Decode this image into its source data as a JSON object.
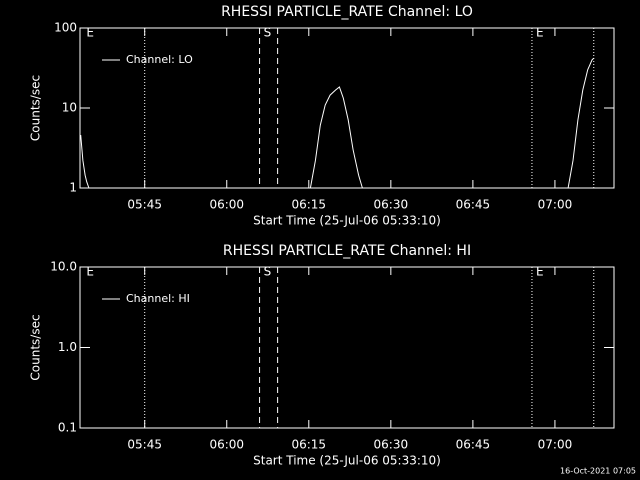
{
  "chart_data": [
    {
      "type": "line",
      "title": "RHESSI PARTICLE_RATE Channel: LO",
      "xlabel": "Start Time (25-Jul-06 05:33:10)",
      "ylabel": "Counts/sec",
      "log_y": true,
      "legend": "top-left",
      "xlim": [
        333.17,
        430.8
      ],
      "xticks": [
        {
          "value": 345,
          "label": "05:45"
        },
        {
          "value": 360,
          "label": "06:00"
        },
        {
          "value": 375,
          "label": "06:15"
        },
        {
          "value": 390,
          "label": "06:30"
        },
        {
          "value": 405,
          "label": "06:45"
        },
        {
          "value": 420,
          "label": "07:00"
        }
      ],
      "ylim": [
        1,
        100
      ],
      "yticks": [
        1,
        10,
        100
      ],
      "markers": [
        {
          "x": 333.6,
          "label": "E",
          "style": "none"
        },
        {
          "x": 345,
          "style": "dotted"
        },
        {
          "x": 366,
          "label": "S",
          "style": "dashed"
        },
        {
          "x": 369.3,
          "style": "dashed"
        },
        {
          "x": 415.8,
          "label": "E",
          "style": "dotted"
        },
        {
          "x": 427.1,
          "style": "dotted"
        }
      ],
      "series": [
        {
          "name": "Channel: LO",
          "color": "#ffffff",
          "x": [
            333.3,
            333.7,
            334.1,
            334.4,
            334.8,
            355,
            375.3,
            376.2,
            377.1,
            378.0,
            378.9,
            379.9,
            380.6,
            381.3,
            382.2,
            383.1,
            384.1,
            384.8,
            400,
            422.4,
            423.3,
            424.2,
            425.1,
            426.0,
            426.8,
            427.1
          ],
          "values": [
            4.6,
            2.2,
            1.45,
            1.2,
            1,
            null,
            1,
            2.2,
            6.1,
            10.9,
            14.5,
            16.8,
            18.3,
            13.3,
            7.1,
            3.0,
            1.45,
            1,
            null,
            1,
            2.2,
            7.1,
            16.8,
            30,
            40,
            42
          ]
        }
      ]
    },
    {
      "type": "line",
      "title": "RHESSI PARTICLE_RATE Channel: HI",
      "xlabel": "Start Time (25-Jul-06 05:33:10)",
      "ylabel": "Counts/sec",
      "log_y": true,
      "legend": "top-left",
      "xlim": [
        333.17,
        430.8
      ],
      "xticks": [
        {
          "value": 345,
          "label": "05:45"
        },
        {
          "value": 360,
          "label": "06:00"
        },
        {
          "value": 375,
          "label": "06:15"
        },
        {
          "value": 390,
          "label": "06:30"
        },
        {
          "value": 405,
          "label": "06:45"
        },
        {
          "value": 420,
          "label": "07:00"
        }
      ],
      "ylim": [
        0.1,
        10
      ],
      "yticks": [
        0.1,
        {
          "value": 1,
          "label": "1.0"
        },
        {
          "value": 10,
          "label": "10.0"
        }
      ],
      "markers": [
        {
          "x": 333.6,
          "label": "E",
          "style": "none"
        },
        {
          "x": 345,
          "style": "dotted"
        },
        {
          "x": 366,
          "label": "S",
          "style": "dashed"
        },
        {
          "x": 369.3,
          "style": "dashed"
        },
        {
          "x": 415.8,
          "label": "E",
          "style": "dotted"
        },
        {
          "x": 427.1,
          "style": "dotted"
        }
      ],
      "series": [
        {
          "name": "Channel: HI",
          "color": "#ffffff",
          "x": [],
          "values": []
        }
      ]
    }
  ],
  "footer": "16-Oct-2021 07:05"
}
